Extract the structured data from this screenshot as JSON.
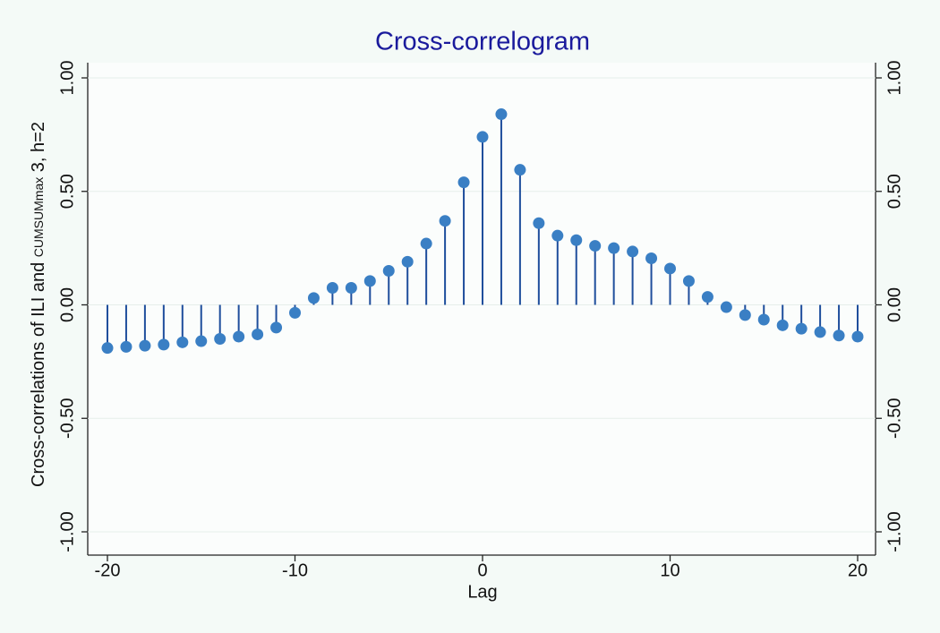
{
  "chart_data": {
    "type": "stem",
    "title": "Cross-correlogram",
    "xlabel": "Lag",
    "ylabel": {
      "head": "Cross-correlations of ILI and",
      "sub": "CUMSUMmax",
      "tail": "3, h=2"
    },
    "x": [
      -20,
      -19,
      -18,
      -17,
      -16,
      -15,
      -14,
      -13,
      -12,
      -11,
      -10,
      -9,
      -8,
      -7,
      -6,
      -5,
      -4,
      -3,
      -2,
      -1,
      0,
      1,
      2,
      3,
      4,
      5,
      6,
      7,
      8,
      9,
      10,
      11,
      12,
      13,
      14,
      15,
      16,
      17,
      18,
      19,
      20
    ],
    "values": [
      -0.19,
      -0.185,
      -0.18,
      -0.175,
      -0.165,
      -0.16,
      -0.15,
      -0.14,
      -0.13,
      -0.1,
      -0.035,
      0.03,
      0.075,
      0.075,
      0.105,
      0.15,
      0.19,
      0.27,
      0.37,
      0.54,
      0.74,
      0.84,
      0.595,
      0.36,
      0.305,
      0.285,
      0.26,
      0.25,
      0.235,
      0.205,
      0.16,
      0.105,
      0.035,
      -0.01,
      -0.045,
      -0.065,
      -0.09,
      -0.105,
      -0.12,
      -0.135,
      -0.14
    ],
    "color": "#3a7fc4",
    "stem_color": "#1f4e9c",
    "xlim": [
      -20,
      20
    ],
    "xticks": [
      -20,
      -10,
      0,
      10,
      20
    ],
    "ylim": [
      -1,
      1
    ],
    "yticks": [
      {
        "value": -1,
        "label": "-1.00"
      },
      {
        "value": -0.5,
        "label": "-0.50"
      },
      {
        "value": 0,
        "label": "0.00"
      },
      {
        "value": 0.5,
        "label": "0.50"
      },
      {
        "value": 1,
        "label": "1.00"
      }
    ],
    "grid": true,
    "mirror_y_axis": true
  }
}
